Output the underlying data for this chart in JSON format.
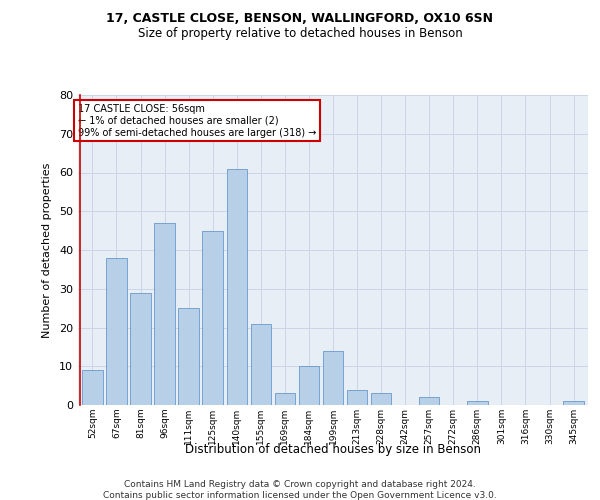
{
  "title1": "17, CASTLE CLOSE, BENSON, WALLINGFORD, OX10 6SN",
  "title2": "Size of property relative to detached houses in Benson",
  "xlabel": "Distribution of detached houses by size in Benson",
  "ylabel": "Number of detached properties",
  "categories": [
    "52sqm",
    "67sqm",
    "81sqm",
    "96sqm",
    "111sqm",
    "125sqm",
    "140sqm",
    "155sqm",
    "169sqm",
    "184sqm",
    "199sqm",
    "213sqm",
    "228sqm",
    "242sqm",
    "257sqm",
    "272sqm",
    "286sqm",
    "301sqm",
    "316sqm",
    "330sqm",
    "345sqm"
  ],
  "values": [
    9,
    38,
    29,
    47,
    25,
    45,
    61,
    21,
    3,
    10,
    14,
    4,
    3,
    0,
    2,
    0,
    1,
    0,
    0,
    0,
    1
  ],
  "bar_color": "#b8cfe8",
  "bar_edge_color": "#6699cc",
  "annotation_box_text": "17 CASTLE CLOSE: 56sqm\n← 1% of detached houses are smaller (2)\n99% of semi-detached houses are larger (318) →",
  "annotation_box_color": "#ffffff",
  "annotation_box_edge_color": "#cc0000",
  "ylim": [
    0,
    80
  ],
  "yticks": [
    0,
    10,
    20,
    30,
    40,
    50,
    60,
    70,
    80
  ],
  "footer1": "Contains HM Land Registry data © Crown copyright and database right 2024.",
  "footer2": "Contains public sector information licensed under the Open Government Licence v3.0.",
  "grid_color": "#ccd5e5",
  "bg_color": "#e8eef6"
}
